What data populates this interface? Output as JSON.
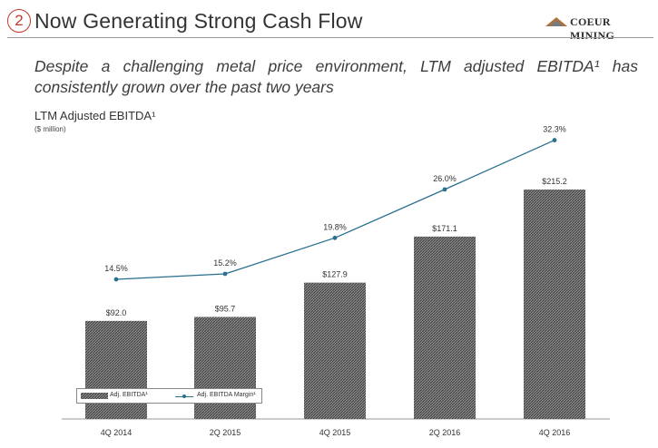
{
  "header": {
    "number": "2",
    "title": "Now Generating Strong Cash Flow",
    "logo_text": "COEUR MINING",
    "logo_tm": "®"
  },
  "subtitle": "Despite a challenging metal price environment, LTM adjusted EBITDA¹ has consistently grown over the past two years",
  "colors": {
    "accent": "#c0392b",
    "line": "#2a6f8f",
    "bar_fill": "#6e6e6e",
    "text": "#333333"
  },
  "chart_data": {
    "type": "bar",
    "title": "LTM Adjusted EBITDA¹",
    "unit": "($ million)",
    "categories": [
      "4Q 2014",
      "2Q 2015",
      "4Q 2015",
      "2Q 2016",
      "4Q 2016"
    ],
    "series": [
      {
        "name": "Adj. EBITDA¹",
        "type": "bar",
        "values": [
          92.0,
          95.7,
          127.9,
          171.1,
          215.2
        ],
        "labels": [
          "$92.0",
          "$95.7",
          "$127.9",
          "$171.1",
          "$215.2"
        ]
      },
      {
        "name": "Adj. EBITDA Margin¹",
        "type": "line",
        "values": [
          14.5,
          15.2,
          19.8,
          26.0,
          32.3
        ],
        "labels": [
          "14.5%",
          "15.2%",
          "19.8%",
          "26.0%",
          "32.3%"
        ]
      }
    ],
    "grid": false,
    "legend": "bottom-left"
  }
}
